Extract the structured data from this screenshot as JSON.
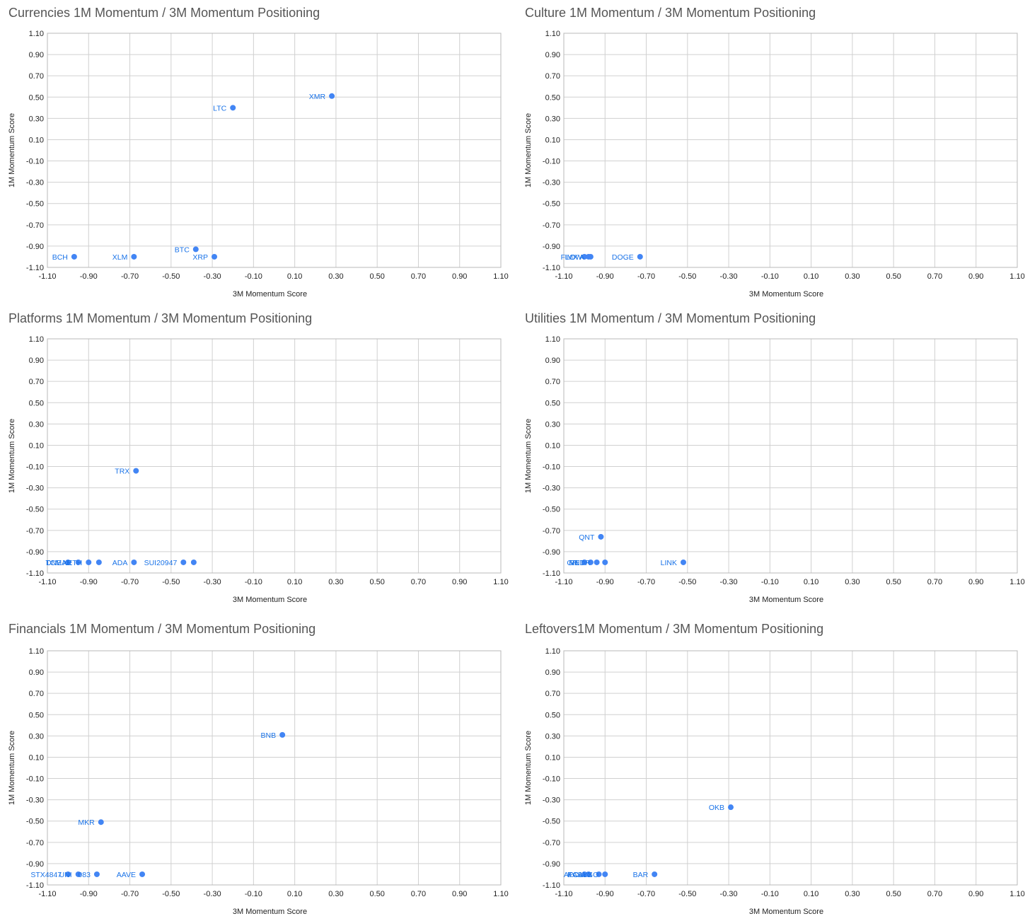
{
  "axes": {
    "xlabel": "3M Momentum Score",
    "ylabel": "1M Momentum Score",
    "xlim": [
      -1.1,
      1.1
    ],
    "ylim": [
      -1.1,
      1.1
    ],
    "x_ticks": [
      "-1.10",
      "-0.90",
      "-0.70",
      "-0.50",
      "-0.30",
      "-0.10",
      "0.10",
      "0.30",
      "0.50",
      "0.70",
      "0.90",
      "1.10"
    ],
    "y_ticks": [
      "1.10",
      "0.90",
      "0.70",
      "0.50",
      "0.30",
      "0.10",
      "-0.10",
      "-0.30",
      "-0.50",
      "-0.70",
      "-0.90",
      "-1.10"
    ]
  },
  "colors": {
    "point": "#4285f4",
    "label": "#1a73e8",
    "title": "#555555"
  },
  "chart_data": [
    {
      "type": "scatter",
      "title": "Currencies 1M Momentum / 3M Momentum Positioning",
      "xlabel": "3M Momentum Score",
      "ylabel": "1M Momentum Score",
      "xlim": [
        -1.1,
        1.1
      ],
      "ylim": [
        -1.1,
        1.1
      ],
      "grid": true,
      "points": [
        {
          "label": "XMR",
          "x": 0.28,
          "y": 0.51
        },
        {
          "label": "LTC",
          "x": -0.2,
          "y": 0.4
        },
        {
          "label": "BTC",
          "x": -0.38,
          "y": -0.93
        },
        {
          "label": "BCH",
          "x": -0.97,
          "y": -1.0
        },
        {
          "label": "XLM",
          "x": -0.68,
          "y": -1.0
        },
        {
          "label": "XRP",
          "x": -0.29,
          "y": -1.0
        }
      ]
    },
    {
      "type": "scatter",
      "title": "Culture 1M Momentum / 3M Momentum Positioning",
      "xlabel": "3M Momentum Score",
      "ylabel": "1M Momentum Score",
      "xlim": [
        -1.1,
        1.1
      ],
      "ylim": [
        -1.1,
        1.1
      ],
      "grid": true,
      "points": [
        {
          "label": "IMX",
          "x": -1.0,
          "y": -1.0
        },
        {
          "label": "FLOW",
          "x": -0.98,
          "y": -1.0
        },
        {
          "label": "A",
          "x": -0.97,
          "y": -1.0
        },
        {
          "label": "DOGE",
          "x": -0.73,
          "y": -1.0
        }
      ]
    },
    {
      "type": "scatter",
      "title": "Platforms 1M Momentum / 3M Momentum Positioning",
      "xlabel": "3M Momentum Score",
      "ylabel": "1M Momentum Score",
      "xlim": [
        -1.1,
        1.1
      ],
      "ylim": [
        -1.1,
        1.1
      ],
      "grid": true,
      "points": [
        {
          "label": "TRX",
          "x": -0.67,
          "y": -0.14
        },
        {
          "label": "TCM",
          "x": -1.0,
          "y": -1.0
        },
        {
          "label": "DNEAR",
          "x": -0.95,
          "y": -1.0
        },
        {
          "label": "XETH",
          "x": -0.9,
          "y": -1.0
        },
        {
          "label": "",
          "x": -0.85,
          "y": -1.0
        },
        {
          "label": "ADA",
          "x": -0.68,
          "y": -1.0
        },
        {
          "label": "SUI20947",
          "x": -0.44,
          "y": -1.0
        },
        {
          "label": "",
          "x": -0.39,
          "y": -1.0
        }
      ]
    },
    {
      "type": "scatter",
      "title": "Utilities 1M Momentum / 3M Momentum Positioning",
      "xlabel": "3M Momentum Score",
      "ylabel": "1M Momentum Score",
      "xlim": [
        -1.1,
        1.1
      ],
      "ylim": [
        -1.1,
        1.1
      ],
      "grid": true,
      "points": [
        {
          "label": "QNT",
          "x": -0.92,
          "y": -0.76
        },
        {
          "label": "GR",
          "x": -1.0,
          "y": -1.0
        },
        {
          "label": "VET",
          "x": -0.97,
          "y": -1.0
        },
        {
          "label": "RNDR",
          "x": -0.94,
          "y": -1.0
        },
        {
          "label": "",
          "x": -0.9,
          "y": -1.0
        },
        {
          "label": "LINK",
          "x": -0.52,
          "y": -1.0
        }
      ]
    },
    {
      "type": "scatter",
      "title": "Financials 1M Momentum / 3M Momentum Positioning",
      "xlabel": "3M Momentum Score",
      "ylabel": "1M Momentum Score",
      "xlim": [
        -1.1,
        1.1
      ],
      "ylim": [
        -1.1,
        1.1
      ],
      "grid": true,
      "points": [
        {
          "label": "BNB",
          "x": 0.04,
          "y": 0.31
        },
        {
          "label": "MKR",
          "x": -0.84,
          "y": -0.51
        },
        {
          "label": "STX4847",
          "x": -1.0,
          "y": -1.0
        },
        {
          "label": "UNI",
          "x": -0.95,
          "y": -1.0
        },
        {
          "label": "083",
          "x": -0.86,
          "y": -1.0
        },
        {
          "label": "AAVE",
          "x": -0.64,
          "y": -1.0
        }
      ]
    },
    {
      "type": "scatter",
      "title": "Leftovers1M Momentum / 3M Momentum Positioning",
      "xlabel": "3M Momentum Score",
      "ylabel": "1M Momentum Score",
      "xlim": [
        -1.1,
        1.1
      ],
      "ylim": [
        -1.1,
        1.1
      ],
      "grid": true,
      "points": [
        {
          "label": "OKB",
          "x": -0.29,
          "y": -0.37
        },
        {
          "label": "ATC",
          "x": -1.0,
          "y": -1.0
        },
        {
          "label": "KAS",
          "x": -0.98,
          "y": -1.0
        },
        {
          "label": "POLYX",
          "x": -0.93,
          "y": -1.0
        },
        {
          "label": "ALGO",
          "x": -0.9,
          "y": -1.0
        },
        {
          "label": "BAR",
          "x": -0.66,
          "y": -1.0
        }
      ]
    }
  ]
}
